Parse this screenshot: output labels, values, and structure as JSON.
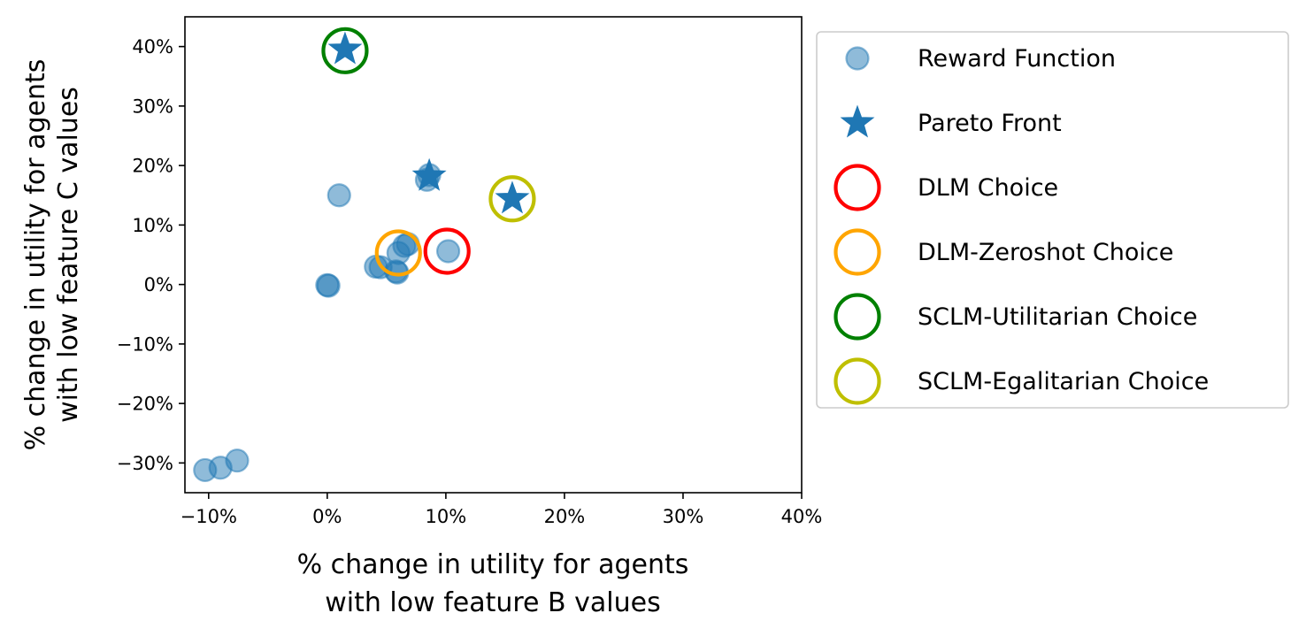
{
  "chart_data": {
    "type": "scatter",
    "xlabel": [
      "% change in utility for agents",
      "with low feature B values"
    ],
    "ylabel": [
      "% change in utility for agents",
      "with low feature C values"
    ],
    "xlim": [
      -12,
      40
    ],
    "ylim": [
      -35,
      45
    ],
    "xticks": [
      -10,
      0,
      10,
      20,
      30,
      40
    ],
    "yticks": [
      -30,
      -20,
      -10,
      0,
      10,
      20,
      30,
      40
    ],
    "xtick_labels": [
      "−10%",
      "0%",
      "10%",
      "20%",
      "30%",
      "40%"
    ],
    "ytick_labels": [
      "−30%",
      "−20%",
      "−10%",
      "0%",
      "10%",
      "20%",
      "30%",
      "40%"
    ],
    "grid": false,
    "legend_placement": "outside-right",
    "series": [
      {
        "name": "Reward Function",
        "marker": "circle",
        "color": "#1f77b4",
        "alpha": 0.5,
        "points": [
          [
            1.0,
            15.0
          ],
          [
            8.4,
            17.6
          ],
          [
            8.6,
            18.4
          ],
          [
            10.2,
            5.6
          ],
          [
            6.0,
            5.3
          ],
          [
            6.5,
            6.5
          ],
          [
            6.8,
            6.8
          ],
          [
            4.1,
            3.0
          ],
          [
            4.5,
            2.9
          ],
          [
            5.8,
            2.2
          ],
          [
            5.9,
            2.0
          ],
          [
            0.0,
            -0.1
          ],
          [
            0.1,
            -0.2
          ],
          [
            -10.3,
            -31.2
          ],
          [
            -9.0,
            -30.8
          ],
          [
            -7.6,
            -29.6
          ]
        ]
      },
      {
        "name": "Pareto Front",
        "marker": "star",
        "color": "#1f77b4",
        "points": [
          [
            1.5,
            39.5
          ],
          [
            8.6,
            18.2
          ],
          [
            15.6,
            14.4
          ]
        ]
      },
      {
        "name": "DLM Choice",
        "marker": "ring",
        "color": "#ff0000",
        "points": [
          [
            10.1,
            5.6
          ]
        ]
      },
      {
        "name": "DLM-Zeroshot Choice",
        "marker": "ring",
        "color": "#ffa500",
        "points": [
          [
            6.0,
            5.3
          ]
        ]
      },
      {
        "name": "SCLM-Utilitarian Choice",
        "marker": "ring",
        "color": "#008000",
        "points": [
          [
            1.5,
            39.3
          ]
        ]
      },
      {
        "name": "SCLM-Egalitarian Choice",
        "marker": "ring",
        "color": "#bfbf00",
        "points": [
          [
            15.6,
            14.4
          ]
        ]
      }
    ]
  }
}
